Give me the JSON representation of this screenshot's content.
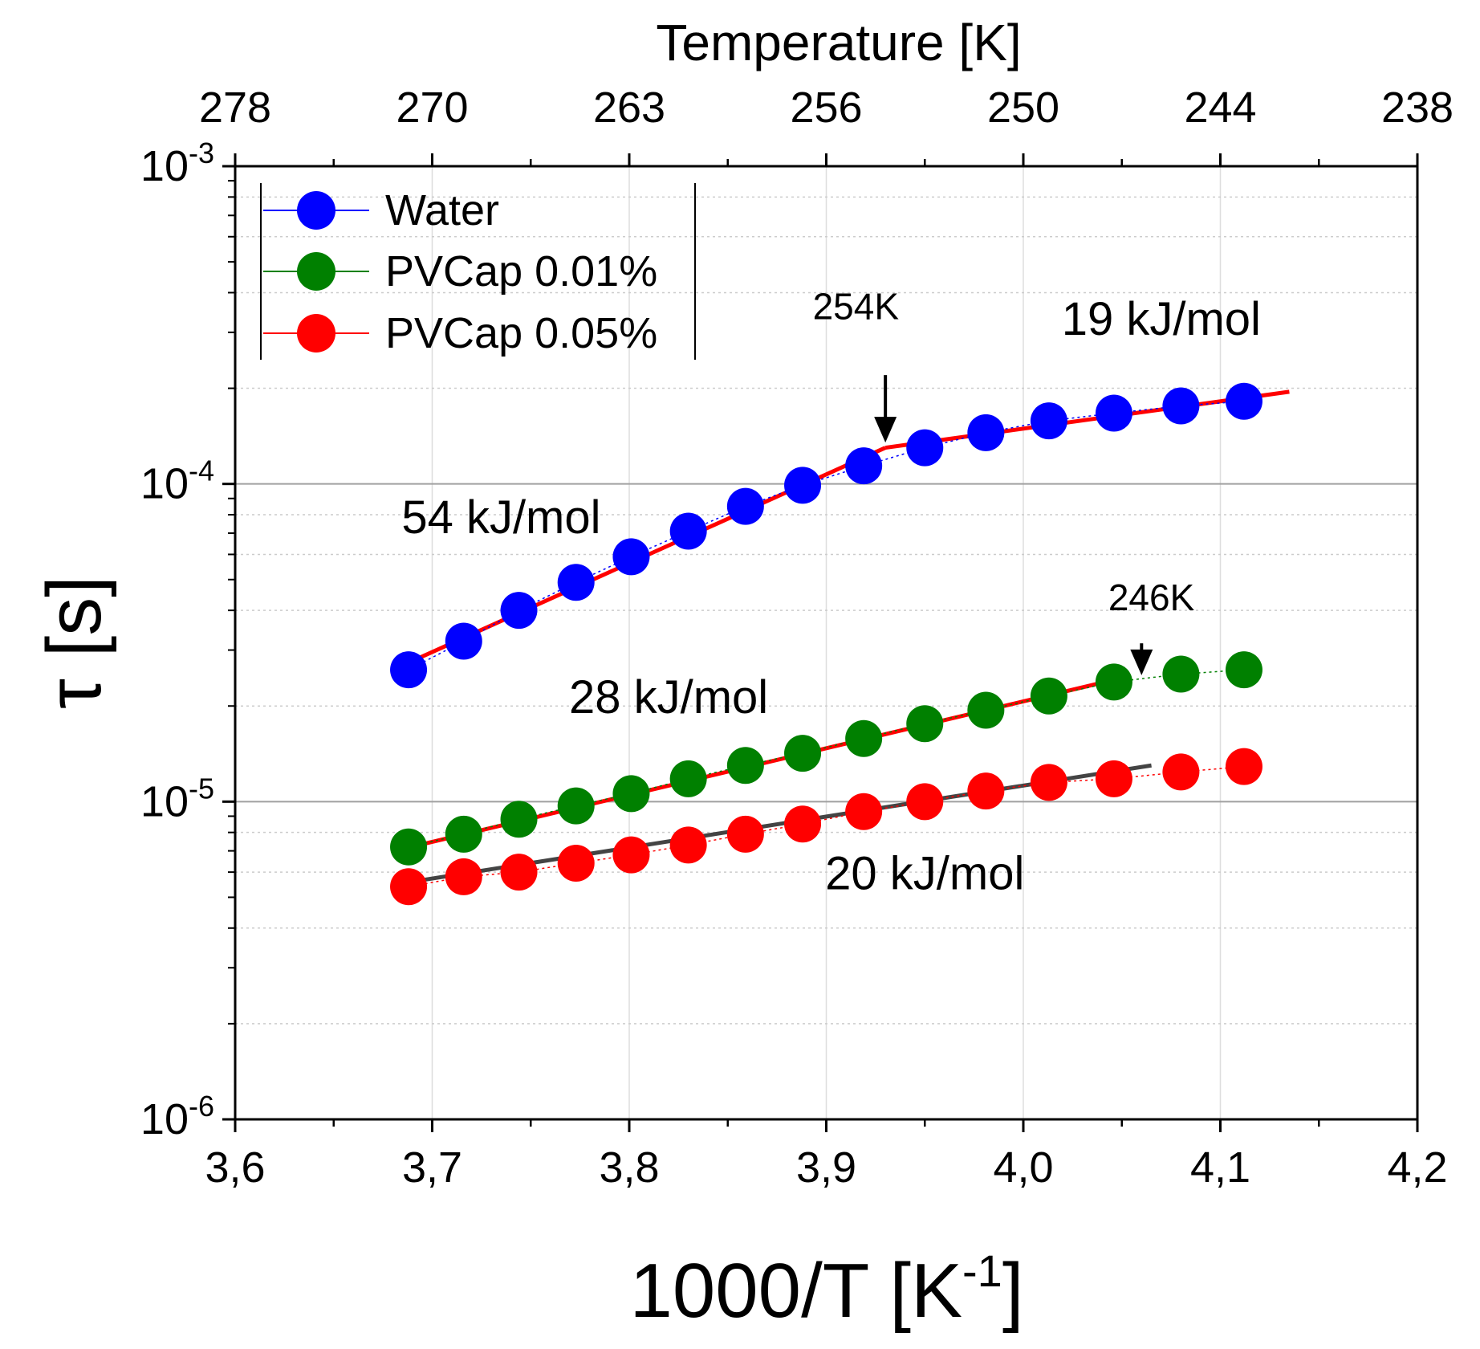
{
  "chart_data": {
    "type": "scatter",
    "title": "",
    "xlabel": "1000/T [K",
    "xlabel_sup": "-1",
    "xlabel_suffix": "]",
    "ylabel": "τ [s]",
    "top_axis_label": "Temperature [K]",
    "xlim": [
      3.6,
      4.2
    ],
    "ylim_log10": [
      -6,
      -3
    ],
    "xticks": [
      3.6,
      3.7,
      3.8,
      3.9,
      4.0,
      4.1,
      4.2
    ],
    "xtick_labels": [
      "3,6",
      "3,7",
      "3,8",
      "3,9",
      "4,0",
      "4,1",
      "4,2"
    ],
    "top_ticks": [
      278,
      270,
      263,
      256,
      250,
      244,
      238
    ],
    "top_tick_labels": [
      "278",
      "270",
      "263",
      "256",
      "250",
      "244",
      "238"
    ],
    "yticks_exp": [
      -3,
      -4,
      -5,
      -6
    ],
    "ytick_base": "10",
    "ytick_exps": [
      "-3",
      "-4",
      "-5",
      "-6"
    ],
    "grid": true,
    "legend_position": "top-left",
    "x": [
      3.688,
      3.716,
      3.744,
      3.773,
      3.801,
      3.83,
      3.859,
      3.888,
      3.919,
      3.95,
      3.981,
      4.013,
      4.046,
      4.08,
      4.112
    ],
    "series": [
      {
        "name": "Water",
        "color": "#0000ff",
        "values": [
          2.6e-05,
          3.2e-05,
          4e-05,
          4.9e-05,
          5.9e-05,
          7.1e-05,
          8.5e-05,
          9.9e-05,
          0.000114,
          0.00013,
          0.000145,
          0.000158,
          0.000167,
          0.000176,
          0.000182
        ]
      },
      {
        "name": "PVCap 0.01%",
        "color": "#008000",
        "values": [
          7.2e-06,
          7.9e-06,
          8.8e-06,
          9.7e-06,
          1.06e-05,
          1.18e-05,
          1.3e-05,
          1.42e-05,
          1.58e-05,
          1.76e-05,
          1.94e-05,
          2.15e-05,
          2.38e-05,
          2.52e-05,
          2.6e-05
        ]
      },
      {
        "name": "PVCap 0.05%",
        "color": "#ff0000",
        "values": [
          5.4e-06,
          5.8e-06,
          6e-06,
          6.4e-06,
          6.8e-06,
          7.3e-06,
          7.9e-06,
          8.5e-06,
          9.3e-06,
          1e-05,
          1.08e-05,
          1.15e-05,
          1.18e-05,
          1.24e-05,
          1.29e-05
        ]
      }
    ],
    "fits": [
      {
        "name": "water-fit-high-T",
        "color": "#ff0000",
        "x": [
          3.68,
          3.93
        ],
        "y": [
          2.6e-05,
          0.00013
        ]
      },
      {
        "name": "water-fit-low-T",
        "color": "#ff0000",
        "x": [
          3.93,
          4.135
        ],
        "y": [
          0.00013,
          0.000195
        ]
      },
      {
        "name": "pvcap-001-fit",
        "color": "#ff0000",
        "x": [
          3.685,
          4.05
        ],
        "y": [
          7.1e-06,
          2.45e-05
        ]
      },
      {
        "name": "pvcap-005-fit",
        "color": "#444444",
        "x": [
          3.69,
          4.065
        ],
        "y": [
          5.6e-06,
          1.3e-05
        ]
      }
    ],
    "annotations": [
      {
        "name": "label-54",
        "text": "54 kJ/mol",
        "x": 3.735,
        "y": 7e-05,
        "size": 58
      },
      {
        "name": "label-19",
        "text": "19 kJ/mol",
        "x": 4.07,
        "y": 0.000295,
        "size": 58
      },
      {
        "name": "label-28",
        "text": "28 kJ/mol",
        "x": 3.82,
        "y": 1.9e-05,
        "size": 58
      },
      {
        "name": "label-20",
        "text": "20 kJ/mol",
        "x": 3.95,
        "y": 5.3e-06,
        "size": 58
      },
      {
        "name": "label-254K",
        "text": "254K",
        "x": 3.915,
        "y": 0.00033,
        "size": 46
      },
      {
        "name": "label-246K",
        "text": "246K",
        "x": 4.065,
        "y": 4e-05,
        "size": 46
      }
    ],
    "arrows": [
      {
        "name": "arrow-254K",
        "x": 3.93,
        "y_from": 0.00022,
        "y_to": 0.000135
      },
      {
        "name": "arrow-246K",
        "x": 4.06,
        "y_from": 3.15e-05,
        "y_to": 2.5e-05
      }
    ]
  }
}
